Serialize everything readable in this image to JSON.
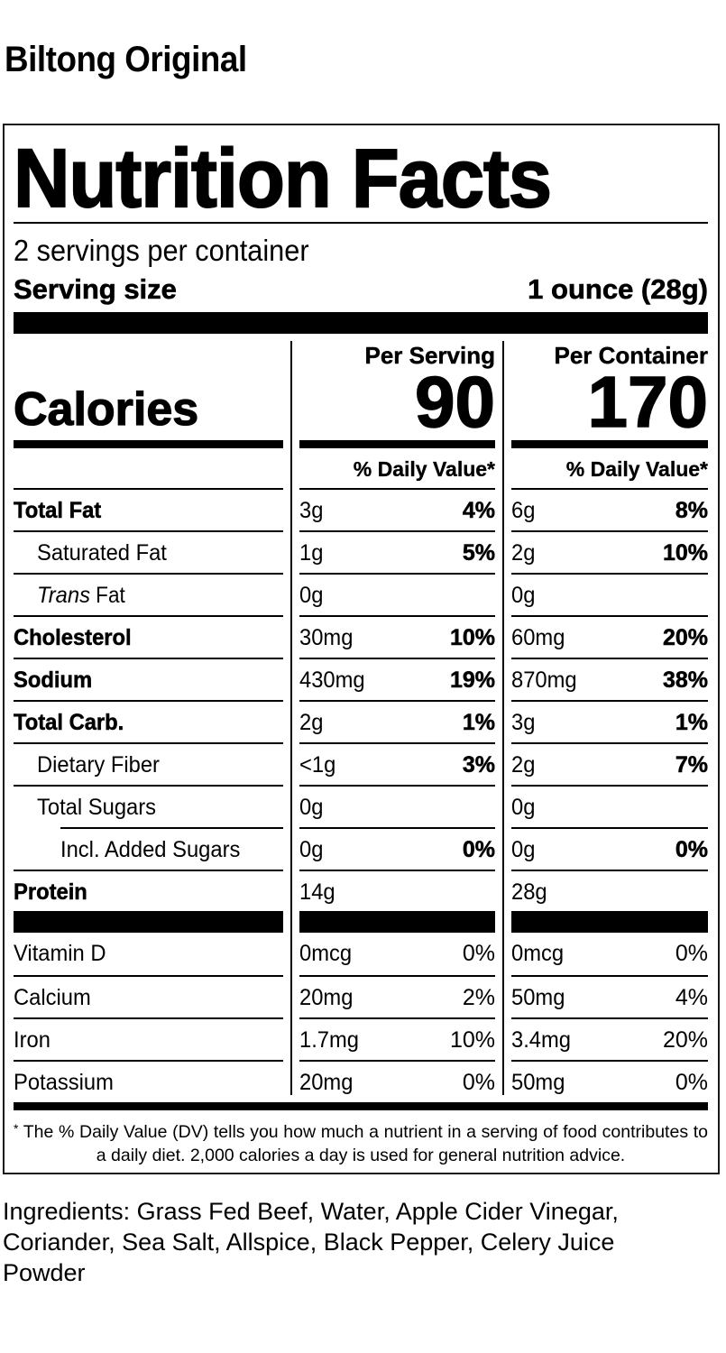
{
  "product": {
    "title": "Biltong Original"
  },
  "label": {
    "heading": "Nutrition Facts",
    "servings_per_container": "2 servings per container",
    "serving_size_label": "Serving size",
    "serving_size_value": "1 ounce (28g)",
    "columns": {
      "per_serving": "Per Serving",
      "per_container": "Per Container",
      "daily_value_header": "% Daily Value*"
    },
    "calories": {
      "label": "Calories",
      "per_serving": "90",
      "per_container": "170"
    },
    "nutrients": [
      {
        "name": "Total Fat",
        "style": "bold",
        "indent": 0,
        "ps_amount": "3g",
        "ps_dv": "4%",
        "pc_amount": "6g",
        "pc_dv": "8%"
      },
      {
        "name": "Saturated Fat",
        "style": "normal",
        "indent": 1,
        "ps_amount": "1g",
        "ps_dv": "5%",
        "pc_amount": "2g",
        "pc_dv": "10%"
      },
      {
        "name_italic": "Trans",
        "name": " Fat",
        "style": "normal",
        "indent": 1,
        "ps_amount": "0g",
        "ps_dv": "",
        "pc_amount": "0g",
        "pc_dv": ""
      },
      {
        "name": "Cholesterol",
        "style": "bold",
        "indent": 0,
        "ps_amount": "30mg",
        "ps_dv": "10%",
        "pc_amount": "60mg",
        "pc_dv": "20%"
      },
      {
        "name": "Sodium",
        "style": "bold",
        "indent": 0,
        "ps_amount": "430mg",
        "ps_dv": "19%",
        "pc_amount": "870mg",
        "pc_dv": "38%"
      },
      {
        "name": "Total Carb.",
        "style": "bold",
        "indent": 0,
        "ps_amount": "2g",
        "ps_dv": "1%",
        "pc_amount": "3g",
        "pc_dv": "1%"
      },
      {
        "name": "Dietary Fiber",
        "style": "normal",
        "indent": 1,
        "ps_amount": "<1g",
        "ps_dv": "3%",
        "pc_amount": "2g",
        "pc_dv": "7%"
      },
      {
        "name": "Total Sugars",
        "style": "normal",
        "indent": 1,
        "ps_amount": "0g",
        "ps_dv": "",
        "pc_amount": "0g",
        "pc_dv": ""
      },
      {
        "name": "Incl. Added Sugars",
        "style": "normal",
        "indent": 2,
        "ps_amount": "0g",
        "ps_dv": "0%",
        "pc_amount": "0g",
        "pc_dv": "0%"
      },
      {
        "name": "Protein",
        "style": "bold",
        "indent": 0,
        "ps_amount": "14g",
        "ps_dv": "",
        "pc_amount": "28g",
        "pc_dv": ""
      }
    ],
    "vitamins": [
      {
        "name": "Vitamin D",
        "ps_amount": "0mcg",
        "ps_dv": "0%",
        "pc_amount": "0mcg",
        "pc_dv": "0%"
      },
      {
        "name": "Calcium",
        "ps_amount": "20mg",
        "ps_dv": "2%",
        "pc_amount": "50mg",
        "pc_dv": "4%"
      },
      {
        "name": "Iron",
        "ps_amount": "1.7mg",
        "ps_dv": "10%",
        "pc_amount": "3.4mg",
        "pc_dv": "20%"
      },
      {
        "name": "Potassium",
        "ps_amount": "20mg",
        "ps_dv": "0%",
        "pc_amount": "50mg",
        "pc_dv": "0%"
      }
    ],
    "footnote_star": "*",
    "footnote": "The % Daily Value (DV) tells you how much a nutrient in a serving of food contributes to a daily diet. 2,000 calories a day is used for general nutrition advice."
  },
  "ingredients": "Ingredients: Grass Fed Beef, Water, Apple Cider Vinegar, Coriander, Sea Salt, Allspice, Black Pepper, Celery Juice Powder"
}
